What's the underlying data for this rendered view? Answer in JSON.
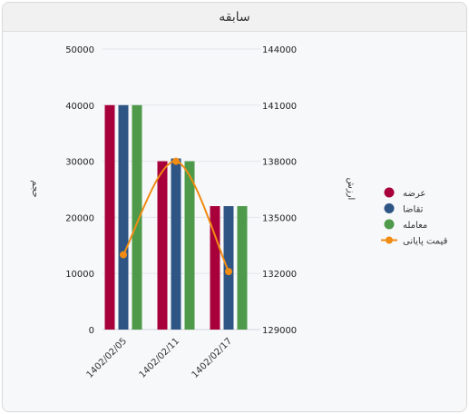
{
  "panel": {
    "title": "سابقه"
  },
  "chart_data": {
    "type": "bar",
    "categories": [
      "1402/02/05",
      "1402/02/11",
      "1402/02/17"
    ],
    "series": [
      {
        "name": "عرضه",
        "type": "bar",
        "axis": "left",
        "color": "#a8003a",
        "values": [
          40000,
          30000,
          22000
        ]
      },
      {
        "name": "تقاضا",
        "type": "bar",
        "axis": "left",
        "color": "#2e5584",
        "values": [
          40000,
          30500,
          22000
        ]
      },
      {
        "name": "معامله",
        "type": "bar",
        "axis": "left",
        "color": "#4e9a4a",
        "values": [
          40000,
          30000,
          22000
        ]
      },
      {
        "name": "قیمت پایانی",
        "type": "line",
        "axis": "right",
        "color": "#f08c12",
        "values": [
          133000,
          138000,
          132100
        ]
      }
    ],
    "y_left": {
      "label": "حجم",
      "ylim": [
        0,
        50000
      ],
      "ticks": [
        "0",
        "10000",
        "20000",
        "30000",
        "40000",
        "50000"
      ]
    },
    "y_right": {
      "label": "ارزش",
      "ylim": [
        129000,
        144000
      ],
      "ticks": [
        "129000",
        "132000",
        "135000",
        "138000",
        "141000",
        "144000"
      ]
    },
    "grid": true,
    "legend": "right"
  }
}
